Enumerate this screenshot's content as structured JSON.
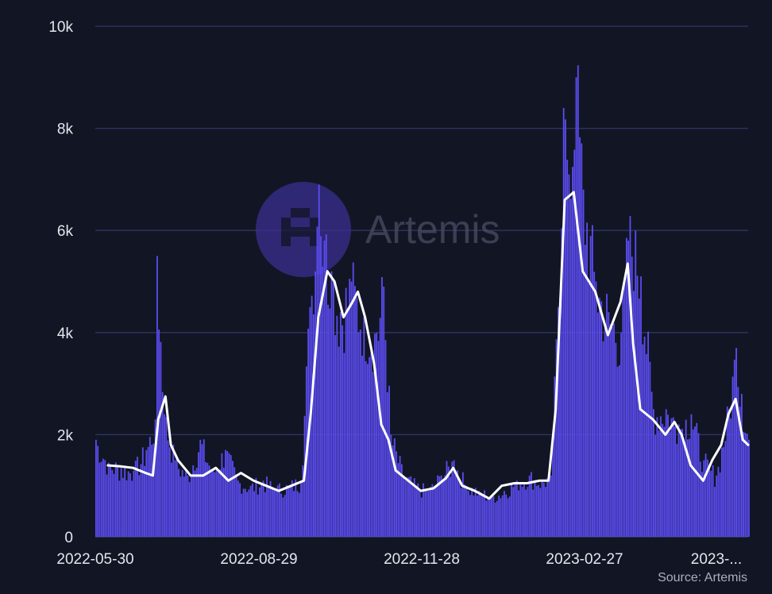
{
  "chart_data": {
    "type": "bar",
    "y_ticks": [
      {
        "value": 0,
        "label": "0"
      },
      {
        "value": 2000,
        "label": "2k"
      },
      {
        "value": 4000,
        "label": "4k"
      },
      {
        "value": 6000,
        "label": "6k"
      },
      {
        "value": 8000,
        "label": "8k"
      },
      {
        "value": 10000,
        "label": "10k"
      }
    ],
    "ylim": [
      0,
      10000
    ],
    "x_ticks": [
      "2022-05-30",
      "2022-08-29",
      "2022-11-28",
      "2023-02-27",
      "2023-..."
    ],
    "x_range": [
      "2022-05-29",
      "2023-05-27"
    ],
    "grid": true,
    "colors": {
      "bars": "#5b4cf2",
      "moving_average": "#ffffff",
      "grid": "#2f3566",
      "background": "#121624"
    },
    "series": [
      {
        "type": "bar",
        "values_by_date": [
          {
            "date": "2022-05-29",
            "y": 1900
          },
          {
            "date": "2022-06-05",
            "y": 1450
          },
          {
            "date": "2022-06-12",
            "y": 1350
          },
          {
            "date": "2022-06-19",
            "y": 1300
          },
          {
            "date": "2022-06-26",
            "y": 1700
          },
          {
            "date": "2022-07-01",
            "y": 2300
          },
          {
            "date": "2022-07-02",
            "y": 5500
          },
          {
            "date": "2022-07-06",
            "y": 2400
          },
          {
            "date": "2022-07-12",
            "y": 1500
          },
          {
            "date": "2022-07-19",
            "y": 1200
          },
          {
            "date": "2022-07-26",
            "y": 1900
          },
          {
            "date": "2022-08-02",
            "y": 1300
          },
          {
            "date": "2022-08-09",
            "y": 1700
          },
          {
            "date": "2022-08-16",
            "y": 1100
          },
          {
            "date": "2022-08-23",
            "y": 1000
          },
          {
            "date": "2022-08-30",
            "y": 1100
          },
          {
            "date": "2022-09-06",
            "y": 950
          },
          {
            "date": "2022-09-13",
            "y": 1000
          },
          {
            "date": "2022-09-20",
            "y": 1100
          },
          {
            "date": "2022-09-25",
            "y": 4500
          },
          {
            "date": "2022-09-30",
            "y": 6900
          },
          {
            "date": "2022-10-03",
            "y": 5800
          },
          {
            "date": "2022-10-07",
            "y": 5200
          },
          {
            "date": "2022-10-12",
            "y": 4400
          },
          {
            "date": "2022-10-18",
            "y": 5000
          },
          {
            "date": "2022-10-25",
            "y": 4300
          },
          {
            "date": "2022-11-01",
            "y": 4000
          },
          {
            "date": "2022-11-05",
            "y": 4900
          },
          {
            "date": "2022-11-09",
            "y": 2000
          },
          {
            "date": "2022-11-16",
            "y": 1200
          },
          {
            "date": "2022-11-23",
            "y": 1000
          },
          {
            "date": "2022-11-30",
            "y": 900
          },
          {
            "date": "2022-12-07",
            "y": 1200
          },
          {
            "date": "2022-12-14",
            "y": 1500
          },
          {
            "date": "2022-12-21",
            "y": 1000
          },
          {
            "date": "2022-12-28",
            "y": 900
          },
          {
            "date": "2023-01-04",
            "y": 800
          },
          {
            "date": "2023-01-11",
            "y": 900
          },
          {
            "date": "2023-01-18",
            "y": 1100
          },
          {
            "date": "2023-01-25",
            "y": 1200
          },
          {
            "date": "2023-02-01",
            "y": 1100
          },
          {
            "date": "2023-02-06",
            "y": 1200
          },
          {
            "date": "2023-02-10",
            "y": 4500
          },
          {
            "date": "2023-02-13",
            "y": 8400
          },
          {
            "date": "2023-02-16",
            "y": 7100
          },
          {
            "date": "2023-02-20",
            "y": 9000
          },
          {
            "date": "2023-02-24",
            "y": 6800
          },
          {
            "date": "2023-03-03",
            "y": 5000
          },
          {
            "date": "2023-03-10",
            "y": 4400
          },
          {
            "date": "2023-03-17",
            "y": 4000
          },
          {
            "date": "2023-03-21",
            "y": 5800
          },
          {
            "date": "2023-03-25",
            "y": 6000
          },
          {
            "date": "2023-03-28",
            "y": 5100
          },
          {
            "date": "2023-04-04",
            "y": 2500
          },
          {
            "date": "2023-04-11",
            "y": 2500
          },
          {
            "date": "2023-04-18",
            "y": 2200
          },
          {
            "date": "2023-04-25",
            "y": 2400
          },
          {
            "date": "2023-05-02",
            "y": 1500
          },
          {
            "date": "2023-05-09",
            "y": 1200
          },
          {
            "date": "2023-05-16",
            "y": 2500
          },
          {
            "date": "2023-05-20",
            "y": 3700
          },
          {
            "date": "2023-05-23",
            "y": 2800
          },
          {
            "date": "2023-05-27",
            "y": 1900
          }
        ]
      },
      {
        "type": "line",
        "values": [
          {
            "date": "2022-06-05",
            "y": 1400
          },
          {
            "date": "2022-06-12",
            "y": 1380
          },
          {
            "date": "2022-06-19",
            "y": 1350
          },
          {
            "date": "2022-06-26",
            "y": 1250
          },
          {
            "date": "2022-06-30",
            "y": 1200
          },
          {
            "date": "2022-07-03",
            "y": 2300
          },
          {
            "date": "2022-07-07",
            "y": 2750
          },
          {
            "date": "2022-07-10",
            "y": 1800
          },
          {
            "date": "2022-07-14",
            "y": 1500
          },
          {
            "date": "2022-07-21",
            "y": 1200
          },
          {
            "date": "2022-07-28",
            "y": 1200
          },
          {
            "date": "2022-08-04",
            "y": 1350
          },
          {
            "date": "2022-08-11",
            "y": 1100
          },
          {
            "date": "2022-08-18",
            "y": 1250
          },
          {
            "date": "2022-08-25",
            "y": 1100
          },
          {
            "date": "2022-09-01",
            "y": 1000
          },
          {
            "date": "2022-09-08",
            "y": 900
          },
          {
            "date": "2022-09-15",
            "y": 1000
          },
          {
            "date": "2022-09-22",
            "y": 1100
          },
          {
            "date": "2022-09-26",
            "y": 2500
          },
          {
            "date": "2022-09-30",
            "y": 4300
          },
          {
            "date": "2022-10-05",
            "y": 5200
          },
          {
            "date": "2022-10-09",
            "y": 5000
          },
          {
            "date": "2022-10-14",
            "y": 4300
          },
          {
            "date": "2022-10-19",
            "y": 4600
          },
          {
            "date": "2022-10-22",
            "y": 4800
          },
          {
            "date": "2022-10-26",
            "y": 4300
          },
          {
            "date": "2022-10-31",
            "y": 3400
          },
          {
            "date": "2022-11-04",
            "y": 2200
          },
          {
            "date": "2022-11-08",
            "y": 1900
          },
          {
            "date": "2022-11-12",
            "y": 1300
          },
          {
            "date": "2022-11-19",
            "y": 1100
          },
          {
            "date": "2022-11-26",
            "y": 900
          },
          {
            "date": "2022-12-03",
            "y": 950
          },
          {
            "date": "2022-12-10",
            "y": 1150
          },
          {
            "date": "2022-12-14",
            "y": 1350
          },
          {
            "date": "2022-12-19",
            "y": 1000
          },
          {
            "date": "2022-12-26",
            "y": 900
          },
          {
            "date": "2023-01-03",
            "y": 750
          },
          {
            "date": "2023-01-10",
            "y": 1000
          },
          {
            "date": "2023-01-17",
            "y": 1050
          },
          {
            "date": "2023-01-24",
            "y": 1050
          },
          {
            "date": "2023-01-31",
            "y": 1100
          },
          {
            "date": "2023-02-05",
            "y": 1100
          },
          {
            "date": "2023-02-09",
            "y": 2500
          },
          {
            "date": "2023-02-14",
            "y": 6600
          },
          {
            "date": "2023-02-19",
            "y": 6750
          },
          {
            "date": "2023-02-24",
            "y": 5200
          },
          {
            "date": "2023-03-03",
            "y": 4800
          },
          {
            "date": "2023-03-10",
            "y": 3950
          },
          {
            "date": "2023-03-17",
            "y": 4600
          },
          {
            "date": "2023-03-21",
            "y": 5350
          },
          {
            "date": "2023-03-24",
            "y": 3800
          },
          {
            "date": "2023-03-28",
            "y": 2500
          },
          {
            "date": "2023-04-04",
            "y": 2300
          },
          {
            "date": "2023-04-11",
            "y": 2000
          },
          {
            "date": "2023-04-16",
            "y": 2250
          },
          {
            "date": "2023-04-20",
            "y": 2000
          },
          {
            "date": "2023-04-25",
            "y": 1400
          },
          {
            "date": "2023-05-02",
            "y": 1100
          },
          {
            "date": "2023-05-07",
            "y": 1500
          },
          {
            "date": "2023-05-12",
            "y": 1800
          },
          {
            "date": "2023-05-16",
            "y": 2400
          },
          {
            "date": "2023-05-20",
            "y": 2700
          },
          {
            "date": "2023-05-24",
            "y": 1900
          },
          {
            "date": "2023-05-27",
            "y": 1800
          }
        ]
      }
    ],
    "watermark": "Artemis",
    "source": "Source: Artemis"
  }
}
